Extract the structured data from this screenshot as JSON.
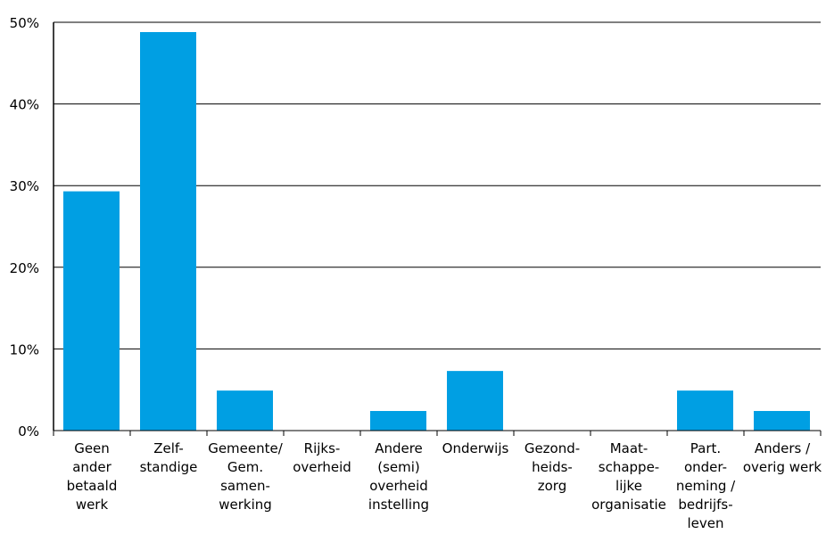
{
  "chart_data": {
    "type": "bar",
    "title": "",
    "xlabel": "",
    "ylabel": "",
    "ylim": [
      0,
      50
    ],
    "yticks": [
      0,
      10,
      20,
      30,
      40,
      50
    ],
    "ytick_labels": [
      "0%",
      "10%",
      "20%",
      "30%",
      "40%",
      "50%"
    ],
    "grid": "horizontal",
    "color": "#009FE3",
    "categories": [
      [
        "Geen",
        "ander",
        "betaald",
        "werk"
      ],
      [
        "Zelf-",
        "standige"
      ],
      [
        "Gemeente/",
        "Gem.",
        "samen-",
        "werking"
      ],
      [
        "Rijks-",
        "overheid"
      ],
      [
        "Andere",
        "(semi)",
        "overheid",
        "instelling"
      ],
      [
        "Onderwijs"
      ],
      [
        "Gezond-",
        "heids-",
        "zorg"
      ],
      [
        "Maat-",
        "schappe-",
        "lijke",
        "organisatie"
      ],
      [
        "Part.",
        "onder-",
        "neming /",
        "bedrijfs-",
        "leven"
      ],
      [
        "Anders /",
        "overig werk"
      ]
    ],
    "values": [
      29.3,
      48.8,
      4.9,
      0,
      2.4,
      7.3,
      0,
      0,
      4.9,
      2.4
    ]
  }
}
